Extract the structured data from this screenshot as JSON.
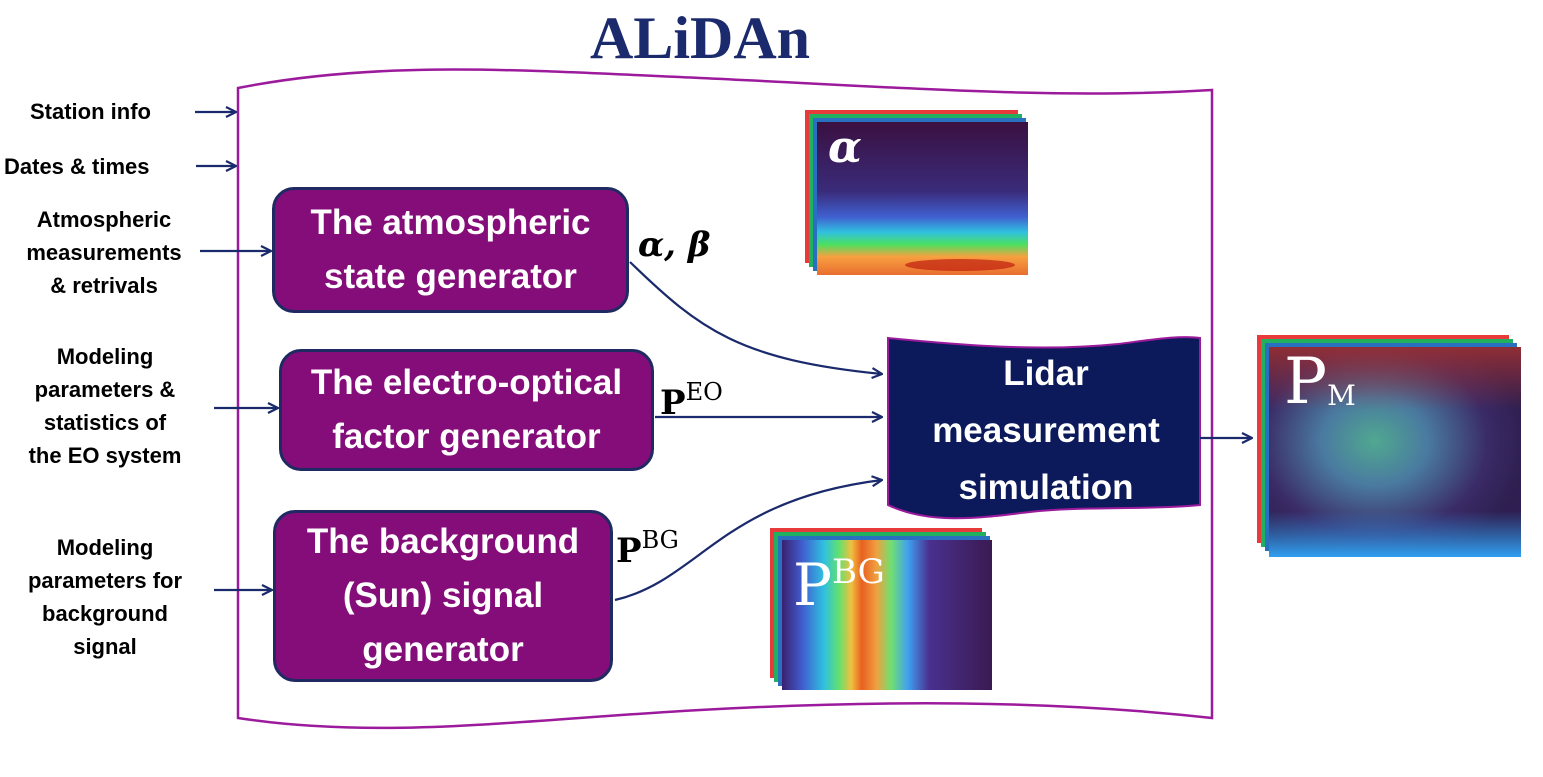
{
  "title": "ALiDAn",
  "inputs": {
    "station_info": "Station info",
    "dates_times": "Dates &  times",
    "atmospheric": "Atmospheric\nmeasurements\n& retrivals",
    "eo_params": "Modeling\nparameters &\nstatistics of\nthe EO system",
    "bg_params": "Modeling\nparameters for\nbackground\nsignal"
  },
  "generators": {
    "atmospheric": "The atmospheric\nstate generator",
    "electro_optical": "The electro-optical\nfactor generator",
    "background": "The background\n(Sun) signal\ngenerator"
  },
  "lidar_block": "Lidar\nmeasurement\nsimulation",
  "signals": {
    "alpha_beta": "α, β",
    "p_eo_base": "P",
    "p_eo_sup": "EO",
    "p_bg_base": "P",
    "p_bg_sup": "BG"
  },
  "image_labels": {
    "alpha": "α",
    "p_bg_base": "P",
    "p_bg_sup": "BG",
    "p_m_base": "P",
    "p_m_sub": "M"
  },
  "colors": {
    "title": "#1a2a6c",
    "generator_fill": "#850d7a",
    "generator_border": "#1f2a63",
    "lidar_fill": "#0c1a5c",
    "frame": "#9c1a9c",
    "arrow": "#1a2a6c"
  }
}
